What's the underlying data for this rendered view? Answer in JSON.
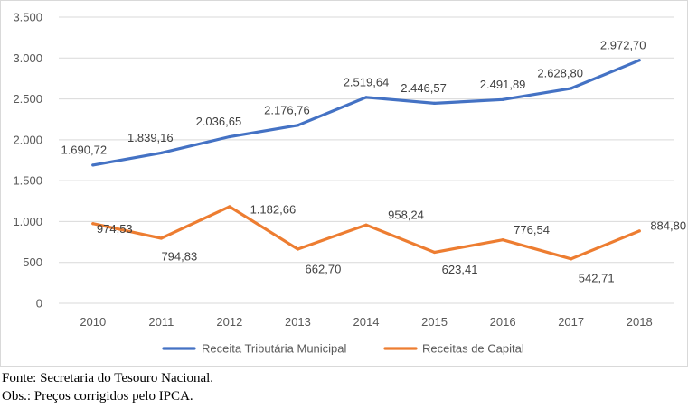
{
  "chart_data": {
    "type": "line",
    "title": "",
    "xlabel": "",
    "ylabel": "",
    "categories": [
      "2010",
      "2011",
      "2012",
      "2013",
      "2014",
      "2015",
      "2016",
      "2017",
      "2018"
    ],
    "ylim": [
      0,
      3500
    ],
    "yticks": [
      0,
      500,
      1000,
      1500,
      2000,
      2500,
      3000,
      3500
    ],
    "ytick_labels": [
      "0",
      "500",
      "1.000",
      "1.500",
      "2.000",
      "2.500",
      "3.000",
      "3.500"
    ],
    "grid": true,
    "legend_position": "bottom",
    "series": [
      {
        "name": "Receita Tributária Municipal",
        "color": "#4472c4",
        "values": [
          1690.72,
          1839.16,
          2036.65,
          2176.76,
          2519.64,
          2446.57,
          2491.89,
          2628.8,
          2972.7
        ],
        "labels": [
          "1.690,72",
          "1.839,16",
          "2.036,65",
          "2.176,76",
          "2.519,64",
          "2.446,57",
          "2.491,89",
          "2.628,80",
          "2.972,70"
        ]
      },
      {
        "name": "Receitas de Capital",
        "color": "#ed7d31",
        "values": [
          974.53,
          794.83,
          1182.66,
          662.7,
          958.24,
          623.41,
          776.54,
          542.71,
          884.8
        ],
        "labels": [
          "974,53",
          "794,83",
          "1.182,66",
          "662,70",
          "958,24",
          "623,41",
          "776,54",
          "542,71",
          "884,80"
        ]
      }
    ]
  },
  "notes": {
    "source": "Fonte: Secretaria do Tesouro Nacional.",
    "obs": "Obs.: Preços corrigidos pelo IPCA."
  }
}
